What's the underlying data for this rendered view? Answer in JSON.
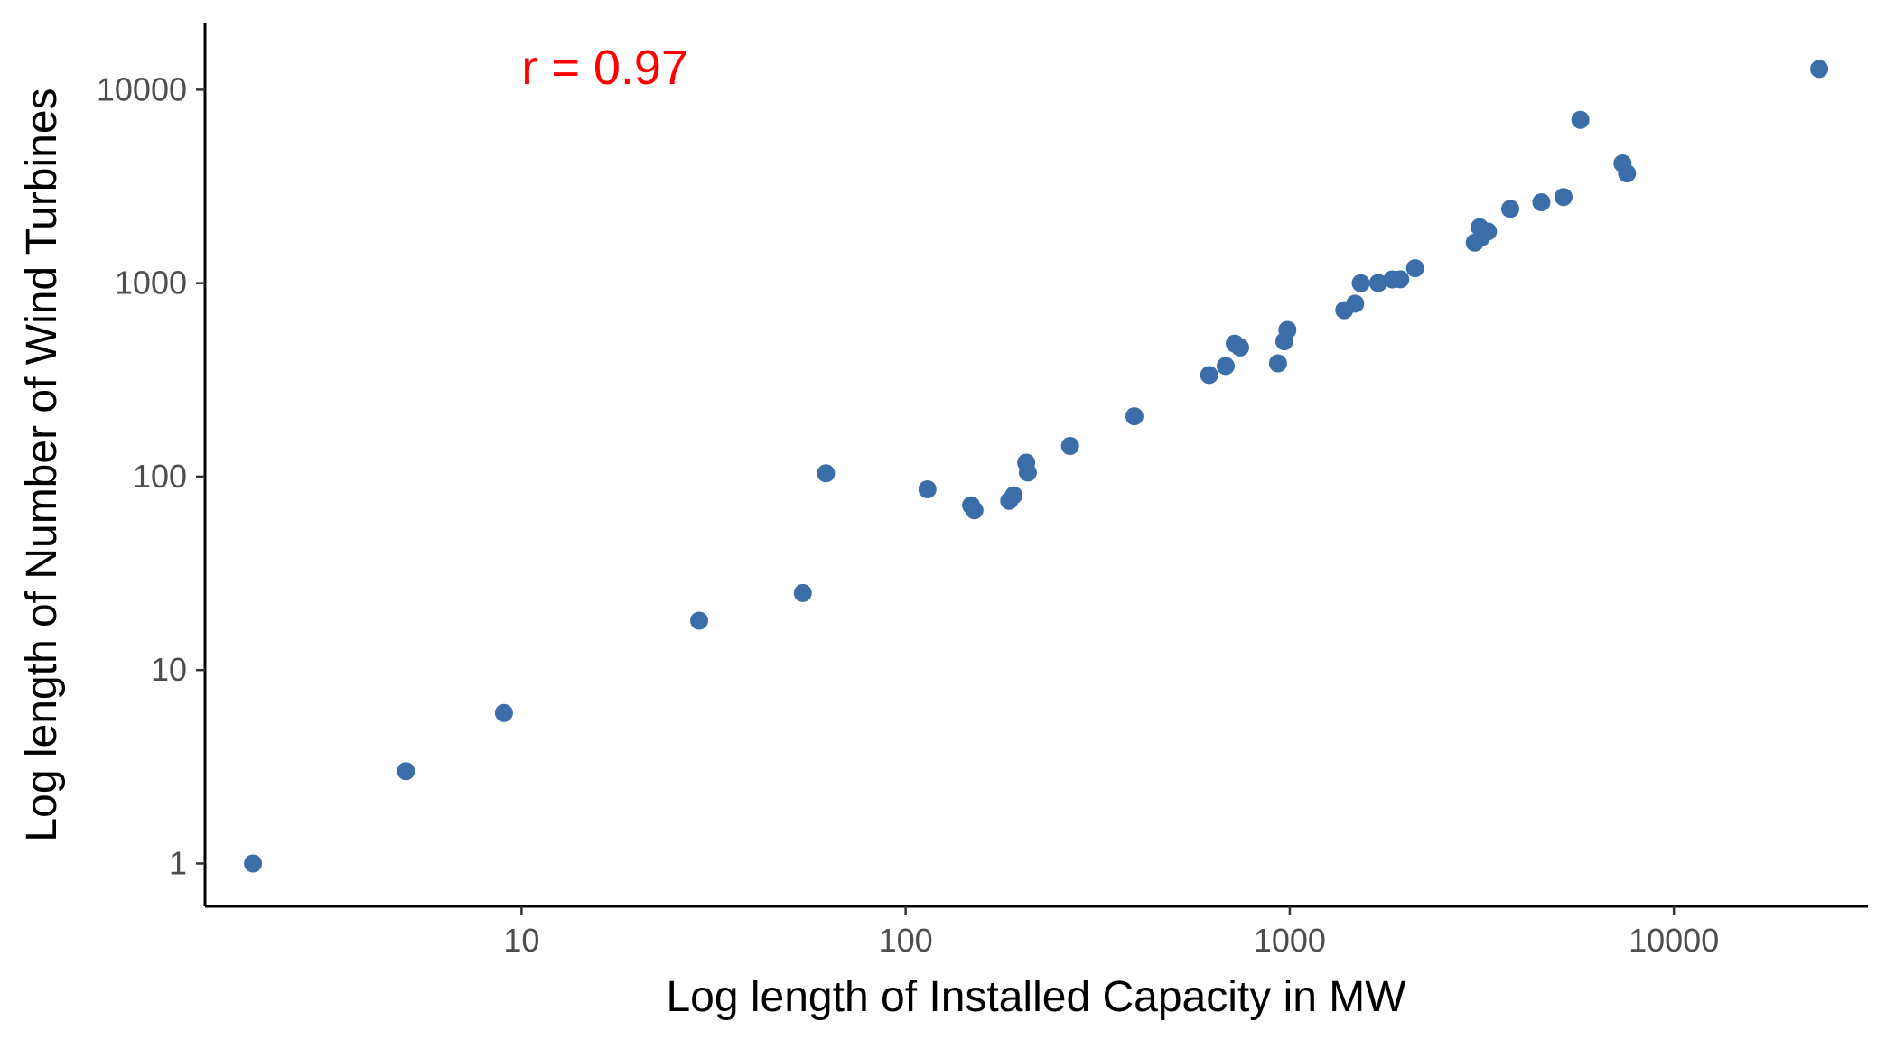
{
  "chart_data": {
    "type": "scatter",
    "title": "",
    "xlabel": "Log length of Installed Capacity in MW",
    "ylabel": "Log length of Number of Wind Turbines",
    "x_scale": "log10",
    "y_scale": "log10",
    "xlim": [
      1.5,
      32000
    ],
    "ylim": [
      0.6,
      22000
    ],
    "x_ticks": [
      10,
      100,
      1000,
      10000
    ],
    "x_tick_labels": [
      "10",
      "100",
      "1000",
      "10000"
    ],
    "y_ticks": [
      1,
      10,
      100,
      1000,
      10000
    ],
    "y_tick_labels": [
      "1",
      "10",
      "100",
      "1000",
      "10000"
    ],
    "grid": false,
    "point_color": "#3B6EA8",
    "annotation": {
      "text": "r =  0.97",
      "color": "#FF0000",
      "x": 10,
      "y": 13000
    },
    "points": [
      {
        "x": 2,
        "y": 1
      },
      {
        "x": 5,
        "y": 3
      },
      {
        "x": 9,
        "y": 6
      },
      {
        "x": 29,
        "y": 18
      },
      {
        "x": 54,
        "y": 25
      },
      {
        "x": 62,
        "y": 104
      },
      {
        "x": 114,
        "y": 86
      },
      {
        "x": 148,
        "y": 71
      },
      {
        "x": 151,
        "y": 67
      },
      {
        "x": 186,
        "y": 75
      },
      {
        "x": 191,
        "y": 80
      },
      {
        "x": 206,
        "y": 118
      },
      {
        "x": 208,
        "y": 105
      },
      {
        "x": 268,
        "y": 144
      },
      {
        "x": 394,
        "y": 205
      },
      {
        "x": 617,
        "y": 335
      },
      {
        "x": 681,
        "y": 373
      },
      {
        "x": 719,
        "y": 487
      },
      {
        "x": 743,
        "y": 465
      },
      {
        "x": 932,
        "y": 385
      },
      {
        "x": 968,
        "y": 500
      },
      {
        "x": 986,
        "y": 573
      },
      {
        "x": 1387,
        "y": 725
      },
      {
        "x": 1480,
        "y": 783
      },
      {
        "x": 1530,
        "y": 999
      },
      {
        "x": 1700,
        "y": 1002
      },
      {
        "x": 1850,
        "y": 1045
      },
      {
        "x": 1940,
        "y": 1047
      },
      {
        "x": 2120,
        "y": 1195
      },
      {
        "x": 3030,
        "y": 1620
      },
      {
        "x": 3120,
        "y": 1945
      },
      {
        "x": 3150,
        "y": 1720
      },
      {
        "x": 3280,
        "y": 1850
      },
      {
        "x": 3750,
        "y": 2420
      },
      {
        "x": 4520,
        "y": 2620
      },
      {
        "x": 5160,
        "y": 2790
      },
      {
        "x": 5710,
        "y": 6980
      },
      {
        "x": 7350,
        "y": 4160
      },
      {
        "x": 7550,
        "y": 3690
      },
      {
        "x": 23900,
        "y": 12800
      }
    ]
  }
}
